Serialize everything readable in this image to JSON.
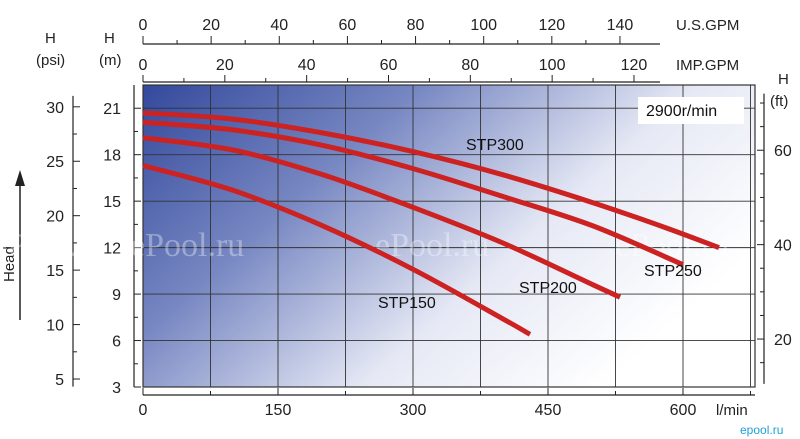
{
  "chart_data": {
    "type": "line",
    "speed_label": "2900r/min",
    "axes": {
      "x_bottom": {
        "label": "l/min",
        "ticks": [
          "0",
          "150",
          "300",
          "450",
          "600"
        ],
        "range": [
          0,
          680
        ]
      },
      "x_top_usgpm": {
        "label": "U.S.GPM",
        "ticks": [
          "0",
          "20",
          "40",
          "60",
          "80",
          "100",
          "120",
          "140"
        ]
      },
      "x_top_impgpm": {
        "label": "IMP.GPM",
        "ticks": [
          "0",
          "20",
          "40",
          "60",
          "80",
          "100",
          "120"
        ]
      },
      "y_left_m": {
        "label": "H",
        "sublabel": "(m)",
        "ticks": [
          "3",
          "6",
          "9",
          "12",
          "15",
          "18",
          "21"
        ],
        "range": [
          3,
          22.5
        ]
      },
      "y_left_psi": {
        "label": "H",
        "sublabel": "(psi)",
        "ticks": [
          "5",
          "10",
          "15",
          "20",
          "25",
          "30"
        ]
      },
      "y_right_ft": {
        "label": "H",
        "sublabel": "(ft)",
        "ticks": [
          "20",
          "40",
          "60"
        ]
      },
      "side_label": "Head"
    },
    "series": [
      {
        "name": "STP300",
        "x": [
          0,
          100,
          200,
          300,
          400,
          500,
          580,
          640
        ],
        "y": [
          20.7,
          20.3,
          19.4,
          18.2,
          16.7,
          14.9,
          13.3,
          12.0
        ]
      },
      {
        "name": "STP250",
        "x": [
          0,
          100,
          200,
          300,
          400,
          500,
          600
        ],
        "y": [
          20.1,
          19.6,
          18.6,
          17.1,
          15.3,
          13.4,
          10.9
        ]
      },
      {
        "name": "STP200",
        "x": [
          0,
          100,
          200,
          300,
          400,
          500,
          530
        ],
        "y": [
          19.1,
          18.3,
          16.7,
          14.6,
          12.3,
          9.6,
          8.8
        ]
      },
      {
        "name": "STP150",
        "x": [
          0,
          100,
          200,
          300,
          400,
          430
        ],
        "y": [
          17.3,
          15.7,
          13.4,
          10.6,
          7.4,
          6.4
        ]
      }
    ],
    "grid": true,
    "colors": {
      "curve": "#cc2222",
      "background_dark": "#3a4fa0",
      "grid": "#333333"
    },
    "watermarks": [
      "ePool.ru",
      "ePool.ru",
      "ePool.ru",
      "ePool.ru"
    ],
    "corner_mark": "epool.ru"
  }
}
